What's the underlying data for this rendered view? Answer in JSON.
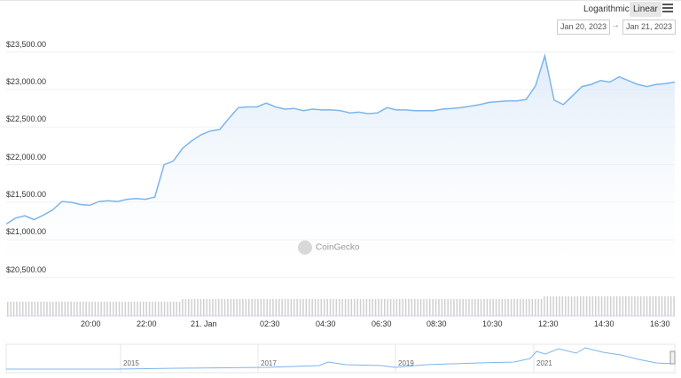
{
  "toolbar": {
    "logarithmic_label": "Logarithmic",
    "linear_label": "Linear",
    "date_from": "Jan 20, 2023",
    "date_arrow": "→",
    "date_to": "Jan 21, 2023"
  },
  "watermark": "CoinGecko",
  "colors": {
    "line": "#7cb5ec",
    "fill_top": "#dbe9f8",
    "volume_bar": "#d0d0d0",
    "navigator": "#7cb5ec"
  },
  "chart_data": {
    "type": "area",
    "y_tick_labels": [
      "$20,500.00",
      "$21,000.00",
      "$21,500.00",
      "$22,000.00",
      "$22,500.00",
      "$23,000.00",
      "$23,500.00"
    ],
    "x_tick_labels": [
      "20:00",
      "22:00",
      "21. Jan",
      "02:30",
      "04:30",
      "06:30",
      "08:30",
      "10:30",
      "12:30",
      "14:30",
      "16:30"
    ],
    "ylim": [
      20500,
      23500
    ],
    "scale": "linear",
    "grid": true,
    "series": [
      {
        "values": [
          21090,
          21170,
          21200,
          21150,
          21210,
          21280,
          21390,
          21380,
          21350,
          21340,
          21390,
          21400,
          21390,
          21420,
          21430,
          21420,
          21450,
          21880,
          21930,
          22100,
          22200,
          22280,
          22330,
          22350,
          22500,
          22640,
          22650,
          22650,
          22700,
          22650,
          22620,
          22630,
          22600,
          22620,
          22610,
          22610,
          22600,
          22570,
          22580,
          22560,
          22570,
          22640,
          22610,
          22610,
          22600,
          22600,
          22600,
          22620,
          22630,
          22640,
          22660,
          22680,
          22710,
          22720,
          22730,
          22730,
          22750,
          22930,
          23330,
          22740,
          22680,
          22800,
          22920,
          22950,
          23000,
          22980,
          23050,
          23000,
          22950,
          22920,
          22950,
          22960,
          22980
        ]
      }
    ],
    "navigator": {
      "tick_labels": [
        "2015",
        "2017",
        "2019",
        "2021"
      ]
    }
  }
}
